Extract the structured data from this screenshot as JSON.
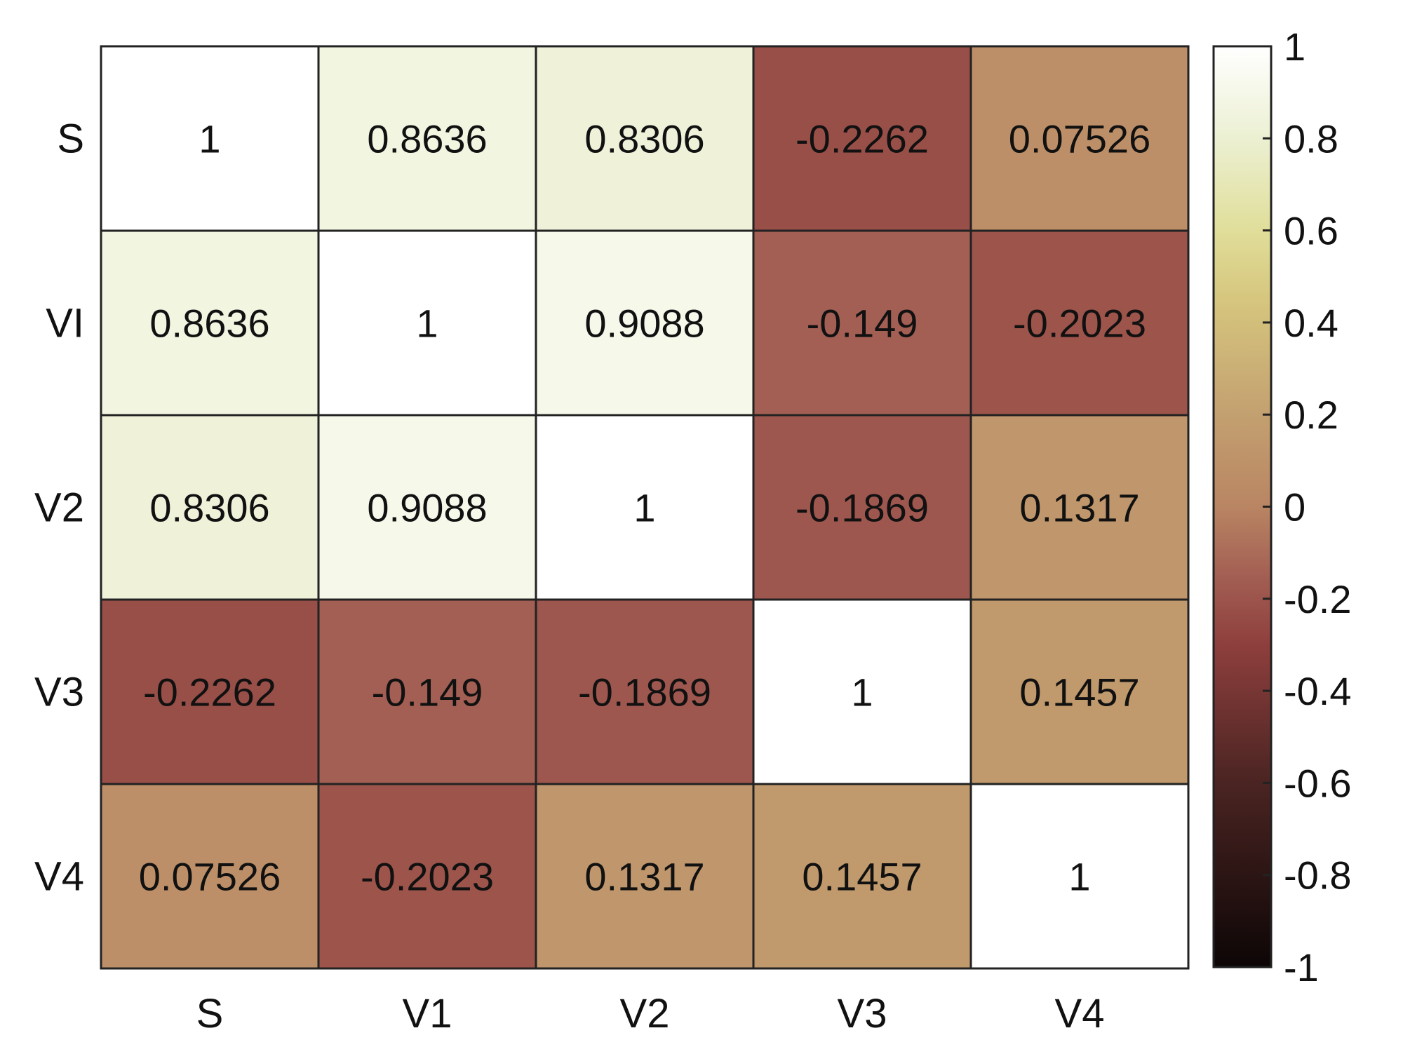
{
  "chart_data": {
    "type": "heatmap",
    "title": "",
    "xlabel": "",
    "ylabel": "",
    "row_labels": [
      "S",
      "VI",
      "V2",
      "V3",
      "V4"
    ],
    "col_labels": [
      "S",
      "V1",
      "V2",
      "V3",
      "V4"
    ],
    "values": [
      [
        1,
        0.8636,
        0.8306,
        -0.2262,
        0.07526
      ],
      [
        0.8636,
        1,
        0.9088,
        -0.149,
        -0.2023
      ],
      [
        0.8306,
        0.9088,
        1,
        -0.1869,
        0.1317
      ],
      [
        -0.2262,
        -0.149,
        -0.1869,
        1,
        0.1457
      ],
      [
        0.07526,
        -0.2023,
        0.1317,
        0.1457,
        1
      ]
    ],
    "cell_labels": [
      [
        "1",
        "0.8636",
        "0.8306",
        "-0.2262",
        "0.07526"
      ],
      [
        "0.8636",
        "1",
        "0.9088",
        "-0.149",
        "-0.2023"
      ],
      [
        "0.8306",
        "0.9088",
        "1",
        "-0.1869",
        "0.1317"
      ],
      [
        "-0.2262",
        "-0.149",
        "-0.1869",
        "1",
        "0.1457"
      ],
      [
        "0.07526",
        "-0.2023",
        "0.1317",
        "0.1457",
        "1"
      ]
    ],
    "colorbar": {
      "range": [
        -1,
        1
      ],
      "ticks": [
        1,
        0.8,
        0.6,
        0.4,
        0.2,
        0,
        -0.2,
        -0.4,
        -0.6,
        -0.8,
        -1
      ],
      "tick_labels": [
        "1",
        "0.8",
        "0.6",
        "0.4",
        "0.2",
        "0",
        "-0.2",
        "-0.4",
        "-0.6",
        "-0.8",
        "-1"
      ],
      "colormap": [
        {
          "value": -1,
          "color": "#0d0606"
        },
        {
          "value": -0.6,
          "color": "#4a2422"
        },
        {
          "value": -0.3,
          "color": "#8e3f3d"
        },
        {
          "value": -0.15,
          "color": "#a35f53"
        },
        {
          "value": 0,
          "color": "#b98563"
        },
        {
          "value": 0.2,
          "color": "#c3a070"
        },
        {
          "value": 0.45,
          "color": "#d6c67e"
        },
        {
          "value": 0.6,
          "color": "#e0de9a"
        },
        {
          "value": 0.8,
          "color": "#ecf0d2"
        },
        {
          "value": 1,
          "color": "#ffffff"
        }
      ]
    }
  }
}
